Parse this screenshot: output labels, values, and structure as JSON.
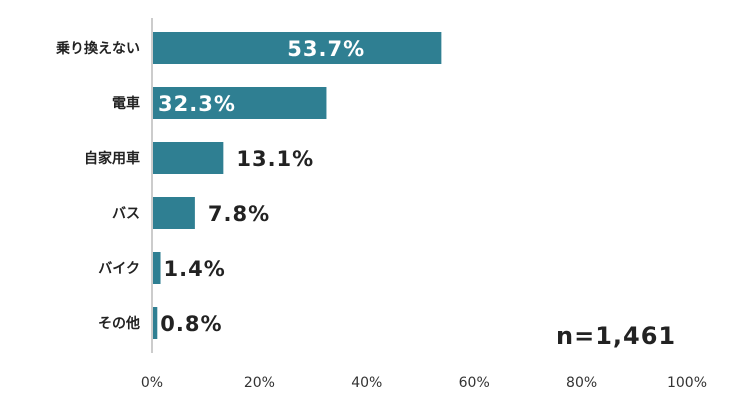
{
  "chart_data": {
    "type": "bar",
    "orientation": "horizontal",
    "categories": [
      "乗り換えない",
      "電車",
      "自家用車",
      "バス",
      "バイク",
      "その他"
    ],
    "values": [
      53.7,
      32.3,
      13.1,
      7.8,
      1.4,
      0.8
    ],
    "value_labels": [
      "53.7%",
      "32.3%",
      "13.1%",
      "7.8%",
      "1.4%",
      "0.8%"
    ],
    "xlim": [
      0,
      100
    ],
    "x_ticks": [
      "0%",
      "20%",
      "40%",
      "60%",
      "80%",
      "100%"
    ],
    "x_tick_values": [
      0,
      20,
      40,
      60,
      80,
      100
    ],
    "bar_color": "#2f7f92",
    "inside_label_color": "#ffffff",
    "outside_label_color": "#222222",
    "grid": false
  },
  "annotation": {
    "sample_size": "n=1,461"
  }
}
